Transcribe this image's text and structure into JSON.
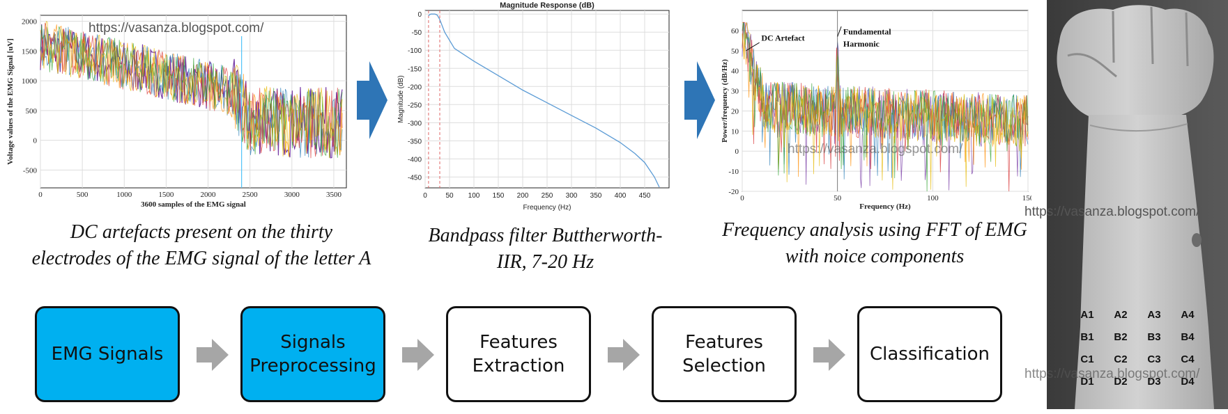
{
  "watermark": "https://vasanza.blogspot.com/",
  "panels": [
    {
      "caption_line1": "DC artefacts present on the thirty",
      "caption_line2": "electrodes of the EMG signal of the letter A"
    },
    {
      "caption_line1": "Bandpass filter Buttherworth-",
      "caption_line2": "IIR, 7-20 Hz"
    },
    {
      "caption_line1": "Frequency analysis using FFT of EMG",
      "caption_line2": "with noice components"
    }
  ],
  "chart_data": [
    {
      "type": "line",
      "title": "",
      "xlabel": "3600 samples of the EMG signal",
      "ylabel": "Voltage values of the EMG Signal [uV]",
      "xlim": [
        0,
        3650
      ],
      "ylim": [
        -800,
        2100
      ],
      "x_ticks": [
        0,
        500,
        1000,
        1500,
        2000,
        2500,
        3000,
        3500
      ],
      "y_ticks": [
        -500,
        0,
        500,
        1000,
        1500,
        2000
      ],
      "trend": {
        "x": [
          0,
          1500,
          2300,
          2500,
          3000,
          3600
        ],
        "y": [
          1600,
          1100,
          800,
          350,
          300,
          300
        ]
      },
      "series_colors": [
        "#7030a0",
        "#ff8c00",
        "#1f77b4",
        "#d62728",
        "#2ca02c",
        "#e6b800"
      ],
      "grid": true
    },
    {
      "type": "line",
      "title": "Magnitude Response (dB)",
      "xlabel": "Frequency (Hz)",
      "ylabel": "Magnitude (dB)",
      "xlim": [
        0,
        500
      ],
      "ylim": [
        -480,
        10
      ],
      "x_ticks": [
        0,
        50,
        100,
        150,
        200,
        250,
        300,
        350,
        400,
        450
      ],
      "y_ticks": [
        0,
        -50,
        -100,
        -150,
        -200,
        -250,
        -300,
        -350,
        -400,
        -450
      ],
      "x": [
        7,
        9,
        12,
        20,
        25,
        30,
        40,
        60,
        100,
        150,
        200,
        250,
        300,
        350,
        400,
        430,
        450,
        470,
        480
      ],
      "y": [
        -5,
        -2,
        0,
        0,
        -3,
        -15,
        -50,
        -95,
        -130,
        -170,
        -210,
        -245,
        -280,
        -315,
        -355,
        -385,
        -410,
        -450,
        -478
      ],
      "markers_x": [
        7,
        30
      ],
      "color": "#5b9bd5",
      "grid": true
    },
    {
      "type": "line",
      "title": "",
      "xlabel": "Frequency (Hz)",
      "ylabel": "Power/frequency (dB/Hz)",
      "xlim": [
        0,
        150
      ],
      "ylim": [
        -20,
        70
      ],
      "x_ticks": [
        0,
        50,
        100,
        150
      ],
      "y_ticks": [
        -20,
        -10,
        0,
        10,
        20,
        30,
        40,
        50,
        60
      ],
      "annotations": [
        {
          "text": "DC Artefact",
          "x": 10,
          "y": 55
        },
        {
          "text": "Fundamental",
          "x": 53,
          "y": 58
        },
        {
          "text": "Harmonic",
          "x": 53,
          "y": 52
        }
      ],
      "peak_x": 50,
      "series_colors": [
        "#7030a0",
        "#ff8c00",
        "#1f77b4",
        "#d62728",
        "#2ca02c",
        "#e6b800"
      ],
      "grid": true
    }
  ],
  "pipeline": [
    {
      "line1": "EMG Signals",
      "line2": "",
      "filled": true
    },
    {
      "line1": "Signals",
      "line2": "Preprocessing",
      "filled": true
    },
    {
      "line1": "Features",
      "line2": "Extraction",
      "filled": false
    },
    {
      "line1": "Features",
      "line2": "Selection",
      "filled": false
    },
    {
      "line1": "Classification",
      "line2": "",
      "filled": false
    }
  ],
  "electrodes": {
    "rows": [
      [
        "A1",
        "A2",
        "A3",
        "A4"
      ],
      [
        "B1",
        "B2",
        "B3",
        "B4"
      ],
      [
        "C1",
        "C2",
        "C3",
        "C4"
      ],
      [
        "D1",
        "D2",
        "D3",
        "D4"
      ]
    ]
  },
  "colors": {
    "accent": "#00b0f0",
    "arrow_blue": "#2e75b6",
    "arrow_gray": "#a6a6a6"
  }
}
